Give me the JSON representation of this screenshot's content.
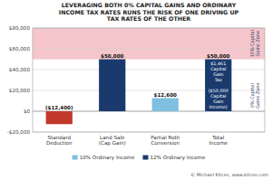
{
  "chart_data": {
    "type": "bar",
    "title": "LEVERAGING BOTH 0% CAPITAL GAINS AND ORDINARY\nINCOME TAX RATES RUNS THE RISK OF ONE DRIVING UP\nTAX RATES OF THE OTHER",
    "categories": [
      "Standard\nDeduction",
      "Land Sale\n(Cap Gain)",
      "Partial Roth\nConversion",
      "Total\nIncome"
    ],
    "series": [
      {
        "color": "#c0392b",
        "values": [
          -12400,
          null,
          null,
          null
        ],
        "value_labels": [
          "($12,400)",
          null,
          null,
          null
        ]
      },
      {
        "name": "10% Ordinary Income",
        "color": "#7fbfdf",
        "values": [
          null,
          null,
          12600,
          null
        ],
        "value_labels": [
          null,
          null,
          "$12,600",
          null
        ]
      },
      {
        "name": "12% Ordinary Income",
        "color": "#1a3a6e",
        "values": [
          null,
          50000,
          null,
          50000
        ],
        "value_labels": [
          null,
          "$50,000",
          null,
          "$50,000"
        ]
      }
    ],
    "stacked": true,
    "data_labels": true,
    "ylim": [
      -20000,
      80000
    ],
    "yticks": [
      {
        "value": -20000,
        "label": "-$20,000"
      },
      {
        "value": 0,
        "label": "$0"
      },
      {
        "value": 20000,
        "label": "$20,000"
      },
      {
        "value": 40000,
        "label": "$40,000"
      },
      {
        "value": 60000,
        "label": "$60,000"
      },
      {
        "value": 80000,
        "label": "$80,000"
      }
    ],
    "grid": true,
    "legend": "bottom",
    "zones": [
      {
        "from": -20000,
        "to": 50000,
        "color": "#ffffff",
        "label": "0% Capital\nGains Zone"
      },
      {
        "from": 50000,
        "to": 80000,
        "color": "#f5c6cb",
        "label": "15% Capital\nGains Zone"
      }
    ],
    "annotations": [
      "$1,461\nCapital\nGain\nTax\n\n($50,000\nCapital\nGain\nIncome)"
    ],
    "footer": "© Michael Kitces, www.kitces.com"
  }
}
